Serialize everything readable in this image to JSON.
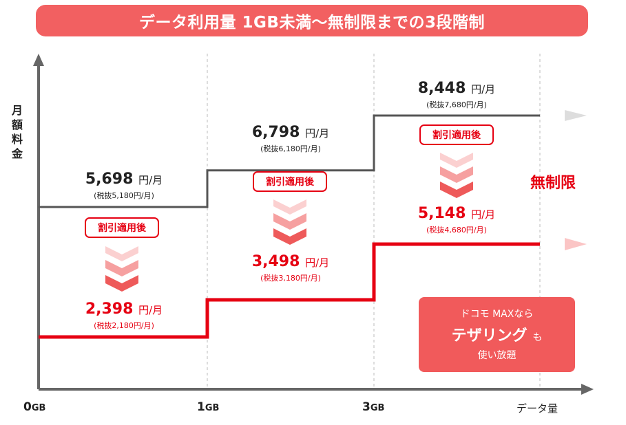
{
  "banner": {
    "text": "データ利用量 1GB未満〜無制限までの3段階制"
  },
  "chart_data": {
    "type": "line",
    "title": "データ利用量 1GB未満〜無制限までの3段階制",
    "ylabel": "月額料金",
    "xlabel": "データ量",
    "x_ticks": [
      {
        "num": "0",
        "unit": "GB"
      },
      {
        "num": "1",
        "unit": "GB"
      },
      {
        "num": "3",
        "unit": "GB"
      }
    ],
    "series": [
      {
        "values": [
          5698,
          6798,
          8448
        ],
        "color": "#555555"
      },
      {
        "values": [
          2398,
          3498,
          5148
        ],
        "color": "#e60012"
      }
    ],
    "tiers": [
      {
        "regular": {
          "price": "5,698",
          "unit": "円/月",
          "tax": "(税抜5,180円/月)"
        },
        "discount": {
          "price": "2,398",
          "unit": "円/月",
          "tax": "(税抜2,180円/月)"
        }
      },
      {
        "regular": {
          "price": "6,798",
          "unit": "円/月",
          "tax": "(税抜6,180円/月)"
        },
        "discount": {
          "price": "3,498",
          "unit": "円/月",
          "tax": "(税抜3,180円/月)"
        }
      },
      {
        "regular": {
          "price": "8,448",
          "unit": "円/月",
          "tax": "(税抜7,680円/月)"
        },
        "discount": {
          "price": "5,148",
          "unit": "円/月",
          "tax": "(税抜4,680円/月)"
        }
      }
    ],
    "badge_label": "割引適用後",
    "unlimited_label": "無制限"
  },
  "tethering": {
    "line1": "ドコモ MAXなら",
    "line2": "テザリング",
    "line2_suffix": "も",
    "line3": "使い放題"
  },
  "colors": {
    "accent": "#e60012",
    "banner": "#f26061",
    "regular_line": "#555555"
  }
}
